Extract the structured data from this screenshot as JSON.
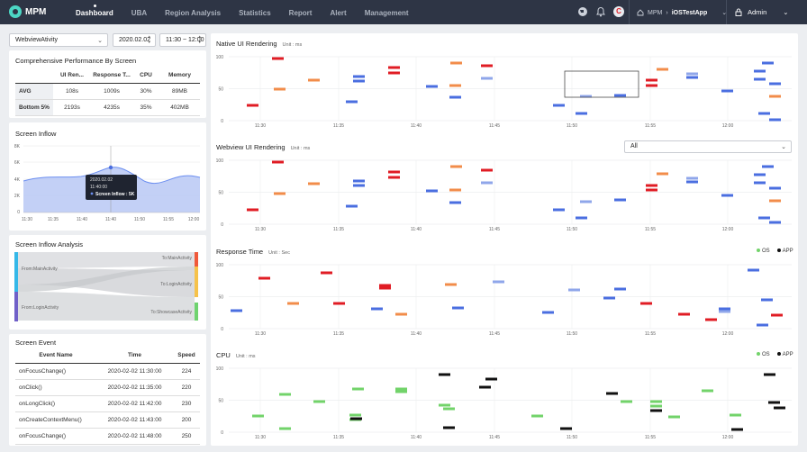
{
  "header": {
    "brand": "MPM",
    "nav": [
      {
        "label": "Dashboard",
        "active": true
      },
      {
        "label": "UBA"
      },
      {
        "label": "Region Analysis"
      },
      {
        "label": "Statistics"
      },
      {
        "label": "Report"
      },
      {
        "label": "Alert"
      },
      {
        "label": "Management"
      }
    ],
    "crumb_root": "MPM",
    "crumb_app": "iOSTestApp",
    "user": "Admin",
    "avatar_letter": "C"
  },
  "filters": {
    "page": "WebviewAtivity",
    "date": "2020.02.02",
    "time": "11:30 ~ 12:00"
  },
  "perf": {
    "title": "Comprehensive Performance By Screen",
    "headers": [
      "",
      "UI Ren...",
      "Response T...",
      "CPU",
      "Memory"
    ],
    "rows": [
      [
        "AVG",
        "108s",
        "1009s",
        "30%",
        "89MB"
      ],
      [
        "Bottom 5%",
        "2193s",
        "4235s",
        "35%",
        "402MB"
      ]
    ]
  },
  "inflow": {
    "title": "Screen Inflow",
    "tooltip": {
      "date": "2020.02.02",
      "time": "11:40:00",
      "label": "Screen Inflow : 5K"
    },
    "ylabels": [
      "8K",
      "6K",
      "4K",
      "2K",
      "0"
    ],
    "xlabels": [
      "11:30",
      "11:35",
      "11:40",
      "11:40",
      "11:50",
      "11:55",
      "12:00"
    ]
  },
  "sankey": {
    "title": "Screen Inflow Analysis",
    "from": [
      "From:MainActivity",
      "From:LoginActivity"
    ],
    "to": [
      "To:MainActivity",
      "To:LoginActivity",
      "To:ShowcaseActivity"
    ]
  },
  "events": {
    "title": "Screen Event",
    "headers": [
      "Event Name",
      "Time",
      "Speed"
    ],
    "rows": [
      [
        "onFocusChange()",
        "2020-02-02 11:30:00",
        "224"
      ],
      [
        "onClick()",
        "2020-02-02 11:35:00",
        "220"
      ],
      [
        "onLongClick()",
        "2020-02-02 11:42:00",
        "230"
      ],
      [
        "onCreateContextMenu()",
        "2020-02-02 11:43:00",
        "200"
      ],
      [
        "onFocusChange()",
        "2020-02-02 11:48:00",
        "250"
      ]
    ]
  },
  "charts": [
    {
      "title": "Native UI Rendering",
      "unit": "Unit : ms",
      "yticks": [
        "100",
        "50",
        "0"
      ]
    },
    {
      "title": "Webview UI Rendering",
      "unit": "Unit : ms",
      "yticks": [
        "100",
        "50",
        "0"
      ],
      "dropdown": "All"
    },
    {
      "title": "Response Time",
      "unit": "Unit : Sec",
      "yticks": [
        "100",
        "50",
        "0"
      ],
      "legend": [
        "OS",
        "APP"
      ]
    },
    {
      "title": "CPU",
      "unit": "Unit : ms",
      "yticks": [
        "100",
        "50",
        "0"
      ],
      "legend": [
        "OS",
        "APP"
      ]
    }
  ],
  "xticks": [
    "11:30",
    "11:35",
    "11:40",
    "11:45",
    "11:50",
    "11:55",
    "12:00"
  ],
  "colors": {
    "blue": "#4a6ee0",
    "orange": "#f28c4a",
    "red": "#e01c24",
    "periwinkle": "#8fa6ea",
    "green": "#72d36a",
    "black": "#111111",
    "nav_bg": "#2e3545"
  }
}
